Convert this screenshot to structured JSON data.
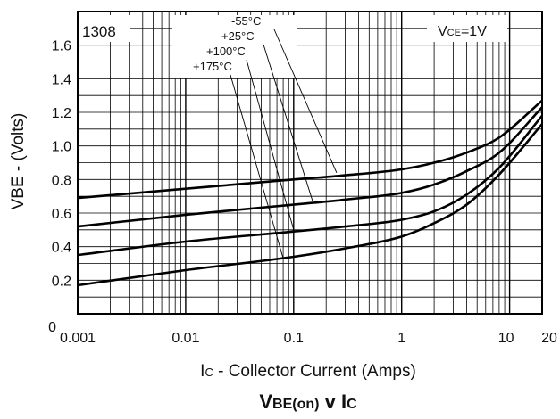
{
  "chart_data": {
    "type": "line",
    "title": "VBE(on) v IC",
    "title_parts": {
      "main": "V",
      "sub1": "BE(on)",
      "mid": " v I",
      "sub2": "C"
    },
    "xlabel": "IC - Collector Current (Amps)",
    "xlabel_parts": {
      "main": "I",
      "sub": "C",
      "rest": " - Collector Current (Amps)"
    },
    "ylabel": "VBE - (Volts)",
    "x_scale": "log",
    "xlim": [
      0.001,
      20
    ],
    "ylim": [
      0,
      1.8
    ],
    "x_ticks": [
      {
        "value": 0.001,
        "label": "0.001"
      },
      {
        "value": 0.01,
        "label": "0.01"
      },
      {
        "value": 0.1,
        "label": "0.1"
      },
      {
        "value": 1,
        "label": "1"
      },
      {
        "value": 10,
        "label": "10"
      },
      {
        "value": 20,
        "label": "20"
      }
    ],
    "y_ticks": [
      {
        "value": 0,
        "label": "0"
      },
      {
        "value": 0.2,
        "label": "0.2"
      },
      {
        "value": 0.4,
        "label": "0.4"
      },
      {
        "value": 0.6,
        "label": "0.6"
      },
      {
        "value": 0.8,
        "label": "0.8"
      },
      {
        "value": 1.0,
        "label": "1.0"
      },
      {
        "value": 1.2,
        "label": "1.2"
      },
      {
        "value": 1.4,
        "label": "1.4"
      },
      {
        "value": 1.6,
        "label": "1.6"
      }
    ],
    "grid": true,
    "annotations": {
      "part_number": "1308",
      "condition": {
        "main": "V",
        "sub": "CE",
        "rest": "=1V"
      }
    },
    "series": [
      {
        "name": "-55°C",
        "x": [
          0.001,
          0.01,
          0.1,
          0.3,
          1,
          2,
          4,
          8,
          20
        ],
        "y": [
          0.69,
          0.745,
          0.8,
          0.825,
          0.86,
          0.9,
          0.96,
          1.05,
          1.27
        ],
        "label_anchor": [
          0.25,
          0.84
        ]
      },
      {
        "name": "+25°C",
        "x": [
          0.001,
          0.01,
          0.1,
          0.3,
          1,
          2,
          4,
          8,
          20
        ],
        "y": [
          0.52,
          0.59,
          0.65,
          0.68,
          0.72,
          0.77,
          0.85,
          0.96,
          1.23
        ],
        "label_anchor": [
          0.15,
          0.67
        ]
      },
      {
        "name": "+100°C",
        "x": [
          0.001,
          0.01,
          0.1,
          0.3,
          1,
          2,
          4,
          8,
          20
        ],
        "y": [
          0.35,
          0.43,
          0.49,
          0.52,
          0.56,
          0.61,
          0.71,
          0.87,
          1.18
        ],
        "label_anchor": [
          0.1,
          0.5
        ]
      },
      {
        "name": "+175°C",
        "x": [
          0.001,
          0.01,
          0.1,
          0.3,
          1,
          2,
          4,
          8,
          20
        ],
        "y": [
          0.17,
          0.26,
          0.34,
          0.39,
          0.46,
          0.54,
          0.65,
          0.83,
          1.13
        ],
        "label_anchor": [
          0.08,
          0.33
        ]
      }
    ]
  }
}
